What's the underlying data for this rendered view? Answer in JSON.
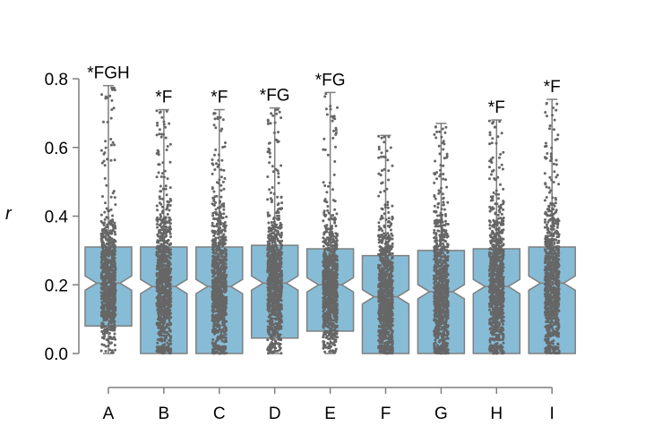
{
  "chart_data": {
    "type": "box",
    "ylabel": "r",
    "ylim": [
      0.0,
      0.8
    ],
    "yticks": [
      "0.0",
      "0.2",
      "0.4",
      "0.6",
      "0.8"
    ],
    "categories": [
      "A",
      "B",
      "C",
      "D",
      "E",
      "F",
      "G",
      "H",
      "I"
    ],
    "annotations": [
      "*FGH",
      "*F",
      "*F",
      "*FG",
      "*FG",
      "",
      "",
      "*F",
      "*F"
    ],
    "boxes": [
      {
        "min": 0.0,
        "q1": 0.08,
        "median": 0.205,
        "q3": 0.31,
        "max": 0.78
      },
      {
        "min": 0.0,
        "q1": 0.0,
        "median": 0.195,
        "q3": 0.31,
        "max": 0.71
      },
      {
        "min": 0.0,
        "q1": 0.0,
        "median": 0.195,
        "q3": 0.31,
        "max": 0.71
      },
      {
        "min": 0.0,
        "q1": 0.045,
        "median": 0.205,
        "q3": 0.315,
        "max": 0.715
      },
      {
        "min": 0.0,
        "q1": 0.065,
        "median": 0.2,
        "q3": 0.305,
        "max": 0.76
      },
      {
        "min": 0.0,
        "q1": 0.0,
        "median": 0.165,
        "q3": 0.285,
        "max": 0.635
      },
      {
        "min": 0.0,
        "q1": 0.0,
        "median": 0.18,
        "q3": 0.3,
        "max": 0.67
      },
      {
        "min": 0.0,
        "q1": 0.0,
        "median": 0.195,
        "q3": 0.305,
        "max": 0.68
      },
      {
        "min": 0.0,
        "q1": 0.0,
        "median": 0.205,
        "q3": 0.31,
        "max": 0.74
      }
    ],
    "grid": false,
    "colors": {
      "box_fill": "#87bcd6",
      "box_edge": "#7f7f7f",
      "points": "#666666",
      "axis": "#7f7f7f"
    }
  }
}
